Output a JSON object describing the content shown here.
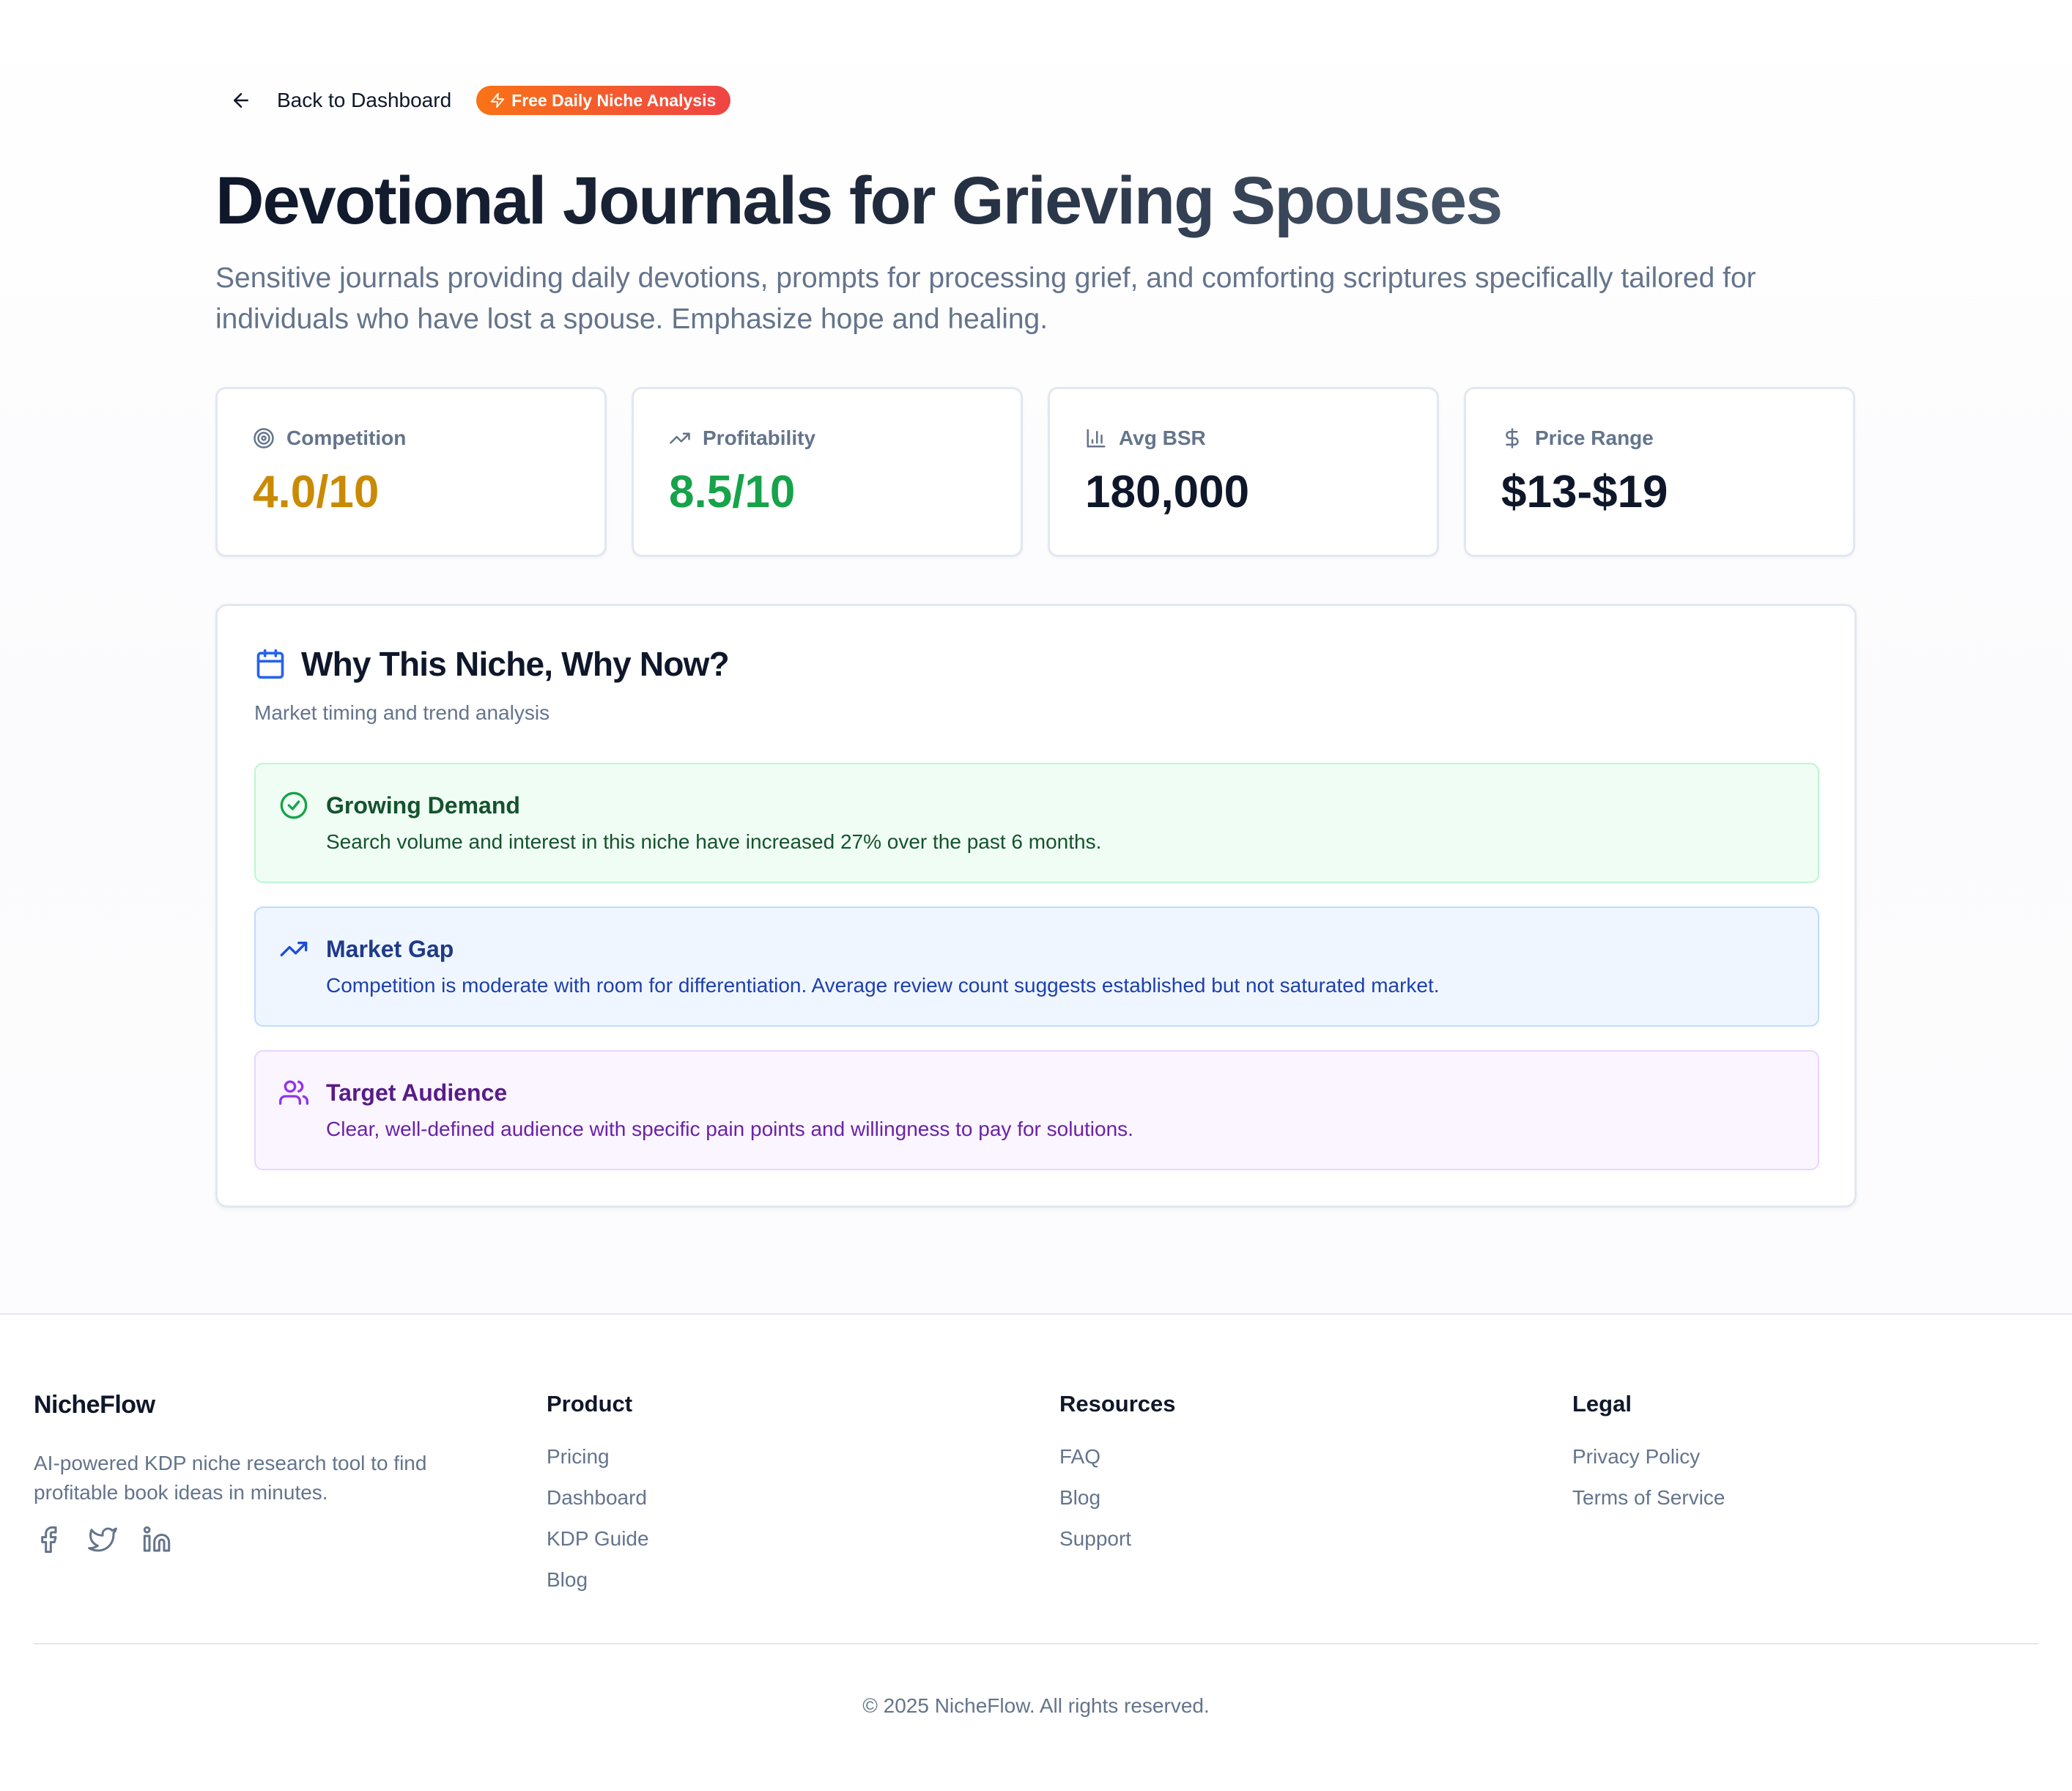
{
  "nav": {
    "back_label": "Back to Dashboard",
    "badge_label": "Free Daily Niche Analysis"
  },
  "niche": {
    "title": "Devotional Journals for Grieving Spouses",
    "description": "Sensitive journals providing daily devotions, prompts for processing grief, and comforting scriptures specifically tailored for individuals who have lost a spouse. Emphasize hope and healing."
  },
  "stats": [
    {
      "label": "Competition",
      "value": "4.0/10",
      "icon": "target-icon",
      "color": "#ca8a04"
    },
    {
      "label": "Profitability",
      "value": "8.5/10",
      "icon": "trending-up-icon",
      "color": "#16a34a"
    },
    {
      "label": "Avg BSR",
      "value": "180,000",
      "icon": "bar-chart-icon",
      "color": "#0f172a"
    },
    {
      "label": "Price Range",
      "value": "$13-$19",
      "icon": "dollar-icon",
      "color": "#0f172a"
    }
  ],
  "why": {
    "title": "Why This Niche, Why Now?",
    "subtitle": "Market timing and trend analysis",
    "insights": [
      {
        "title": "Growing Demand",
        "text": "Search volume and interest in this niche have increased 27% over the past 6 months.",
        "icon": "check-circle-icon"
      },
      {
        "title": "Market Gap",
        "text": "Competition is moderate with room for differentiation. Average review count suggests established but not saturated market.",
        "icon": "trending-up-icon"
      },
      {
        "title": "Target Audience",
        "text": "Clear, well-defined audience with specific pain points and willingness to pay for solutions.",
        "icon": "users-icon"
      }
    ]
  },
  "footer": {
    "brand": "NicheFlow",
    "description": "AI-powered KDP niche research tool to find profitable book ideas in minutes.",
    "columns": [
      {
        "title": "Product",
        "links": [
          "Pricing",
          "Dashboard",
          "KDP Guide",
          "Blog"
        ]
      },
      {
        "title": "Resources",
        "links": [
          "FAQ",
          "Blog",
          "Support"
        ]
      },
      {
        "title": "Legal",
        "links": [
          "Privacy Policy",
          "Terms of Service"
        ]
      }
    ],
    "copyright": "© 2025 NicheFlow. All rights reserved."
  }
}
